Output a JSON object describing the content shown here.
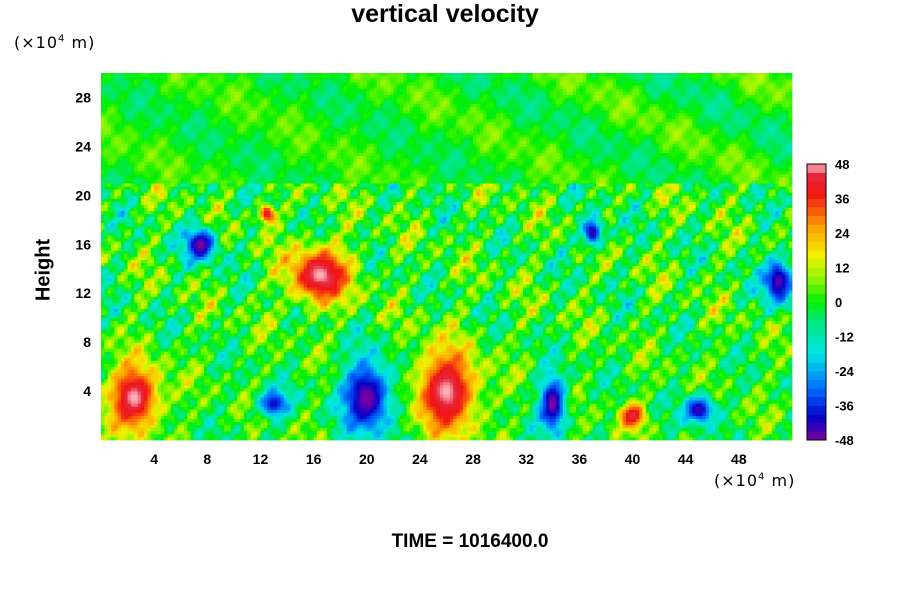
{
  "chart_data": {
    "type": "heatmap",
    "title": "vertical velocity",
    "xlabel": "",
    "ylabel": "Height",
    "x_unit": "(×10⁴ m)",
    "y_unit": "(×10⁴ m)",
    "xlim": [
      0,
      52
    ],
    "ylim": [
      0,
      30
    ],
    "x_ticks": [
      4,
      8,
      12,
      16,
      20,
      24,
      28,
      32,
      36,
      40,
      44,
      48
    ],
    "y_ticks": [
      4,
      8,
      12,
      16,
      20,
      24,
      28
    ],
    "colorbar": {
      "range": [
        -48,
        48
      ],
      "levels_step": 3,
      "tick_labels": [
        "48",
        "36",
        "24",
        "12",
        "0",
        "-12",
        "-24",
        "-36",
        "-48"
      ]
    },
    "features": [
      {
        "kind": "updraft",
        "x": 2.5,
        "y": 3.5,
        "rx": 2.5,
        "ry": 3.5,
        "value": 48
      },
      {
        "kind": "updraft",
        "x": 26,
        "y": 4,
        "rx": 3,
        "ry": 4.5,
        "value": 48
      },
      {
        "kind": "updraft",
        "x": 16.5,
        "y": 13.5,
        "rx": 3,
        "ry": 3,
        "value": 48
      },
      {
        "kind": "updraft",
        "x": 40,
        "y": 2,
        "rx": 1.2,
        "ry": 1.3,
        "value": 44
      },
      {
        "kind": "updraft",
        "x": 12.5,
        "y": 18.5,
        "rx": 0.8,
        "ry": 1,
        "value": 44
      },
      {
        "kind": "downdraft",
        "x": 20,
        "y": 3.5,
        "rx": 2.5,
        "ry": 4,
        "value": -48
      },
      {
        "kind": "downdraft",
        "x": 34,
        "y": 3,
        "rx": 1.3,
        "ry": 3,
        "value": -48
      },
      {
        "kind": "downdraft",
        "x": 7.5,
        "y": 16,
        "rx": 1.5,
        "ry": 1.8,
        "value": -48
      },
      {
        "kind": "downdraft",
        "x": 45,
        "y": 2.5,
        "rx": 1.5,
        "ry": 1.5,
        "value": -44
      },
      {
        "kind": "downdraft",
        "x": 51,
        "y": 13,
        "rx": 1.5,
        "ry": 2.5,
        "value": -46
      },
      {
        "kind": "downdraft",
        "x": 37,
        "y": 17,
        "rx": 1,
        "ry": 1.5,
        "value": -44
      },
      {
        "kind": "downdraft",
        "x": 13,
        "y": 3,
        "rx": 1.5,
        "ry": 1.5,
        "value": -40
      }
    ],
    "grid": false,
    "legend": "colorbar-right"
  },
  "time_label": "TIME = 1016400.0"
}
